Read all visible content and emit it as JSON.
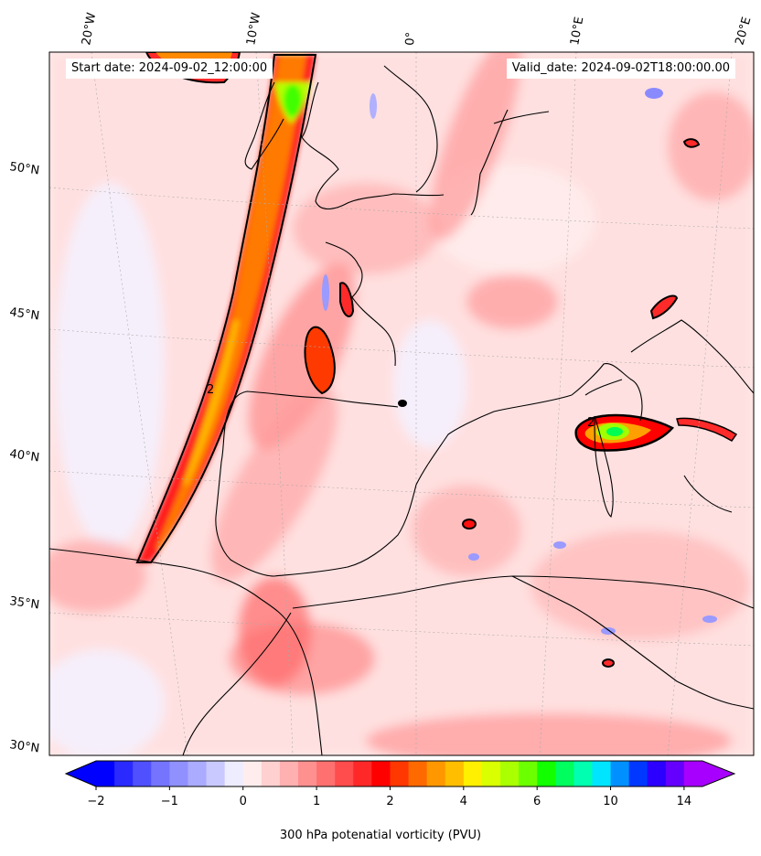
{
  "header": {
    "start_date": "Start date: 2024-09-02_12:00:00",
    "valid_date": "Valid_date: 2024-09-02T18:00:00.00"
  },
  "map": {
    "field": "300 hPa potential vorticity",
    "lon_labels": [
      "20°W",
      "10°W",
      "0°",
      "10°E",
      "20°E"
    ],
    "lat_labels": [
      "50°N",
      "45°N",
      "40°N",
      "35°N",
      "30°N"
    ],
    "contour_label": "2"
  },
  "colorbar": {
    "label": "300 hPa potenatial vorticity (PVU)",
    "tick_labels": [
      "−2",
      "−1",
      "0",
      "1",
      "2",
      "4",
      "6",
      "10",
      "14"
    ],
    "extend": "both",
    "colors": [
      "#0000ff",
      "#2a2aff",
      "#5050ff",
      "#7474ff",
      "#9090ff",
      "#ababff",
      "#c9c9ff",
      "#ededff",
      "#ffeded",
      "#ffd0d0",
      "#ffb0b0",
      "#ff9090",
      "#ff7070",
      "#ff4c4c",
      "#ff2828",
      "#ff0000",
      "#ff3700",
      "#ff6a00",
      "#ff9800",
      "#ffbe00",
      "#ffef00",
      "#d9ff00",
      "#aaff00",
      "#6cff00",
      "#12ff00",
      "#00ff5e",
      "#00ffb0",
      "#00e5ff",
      "#0090ff",
      "#0038ff",
      "#2b00ff",
      "#6500ff",
      "#a800ff"
    ]
  }
}
